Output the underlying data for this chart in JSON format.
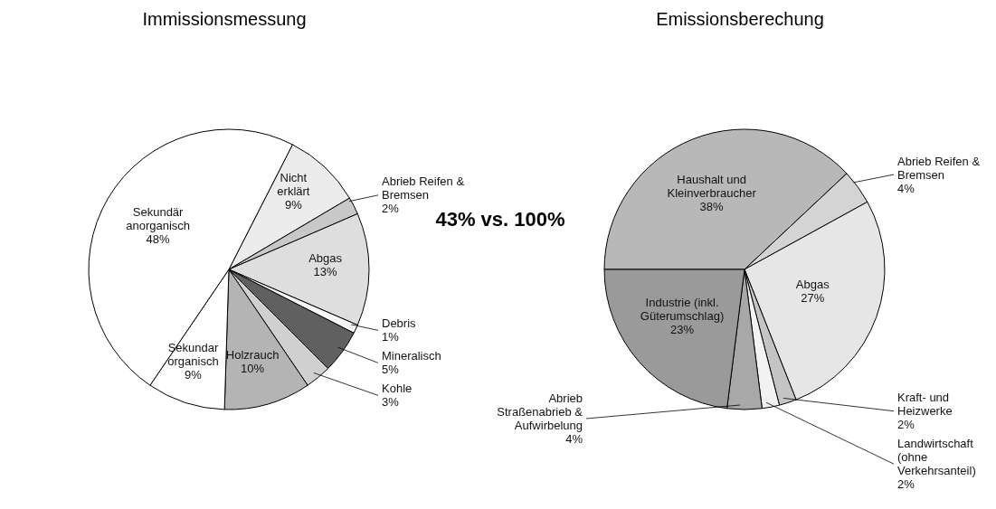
{
  "chart_data": [
    {
      "type": "pie",
      "title": "Immissionsmessung",
      "categories": [
        "Nicht erklärt",
        "Abrieb Reifen & Bremsen",
        "Abgas",
        "Debris",
        "Mineralisch",
        "Kohle",
        "Holzrauch",
        "Sekundar organisch",
        "Sekundär anorganisch"
      ],
      "values": [
        9,
        2,
        13,
        1,
        5,
        3,
        10,
        9,
        48
      ],
      "value_labels": [
        "9%",
        "2%",
        "13%",
        "1%",
        "5%",
        "3%",
        "10%",
        "9%",
        "48%"
      ],
      "colors": [
        "#ececec",
        "#c8c8c8",
        "#dedede",
        "#f6f6f6",
        "#606060",
        "#d0d0d0",
        "#b4b4b4",
        "#ffffff",
        "#ffffff"
      ],
      "annotations": [
        "43% vs. 100%"
      ]
    },
    {
      "type": "pie",
      "title": "Emissionsberechung",
      "categories": [
        "Haushalt und Kleinverbraucher",
        "Abrieb Reifen & Bremsen",
        "Abgas",
        "Kraft- und Heizwerke",
        "Landwirtschaft (ohne Verkehrsanteil)",
        "Abrieb Straßenabrieb & Aufwirbelung",
        "Industrie (inkl. Güterumschlag)"
      ],
      "values": [
        38,
        4,
        27,
        2,
        2,
        4,
        23
      ],
      "value_labels": [
        "38%",
        "4%",
        "27%",
        "2%",
        "2%",
        "4%",
        "23%"
      ],
      "colors": [
        "#b8b8b8",
        "#d4d4d4",
        "#e6e6e6",
        "#c4c4c4",
        "#f2f2f2",
        "#a8a8a8",
        "#9a9a9a"
      ]
    }
  ]
}
